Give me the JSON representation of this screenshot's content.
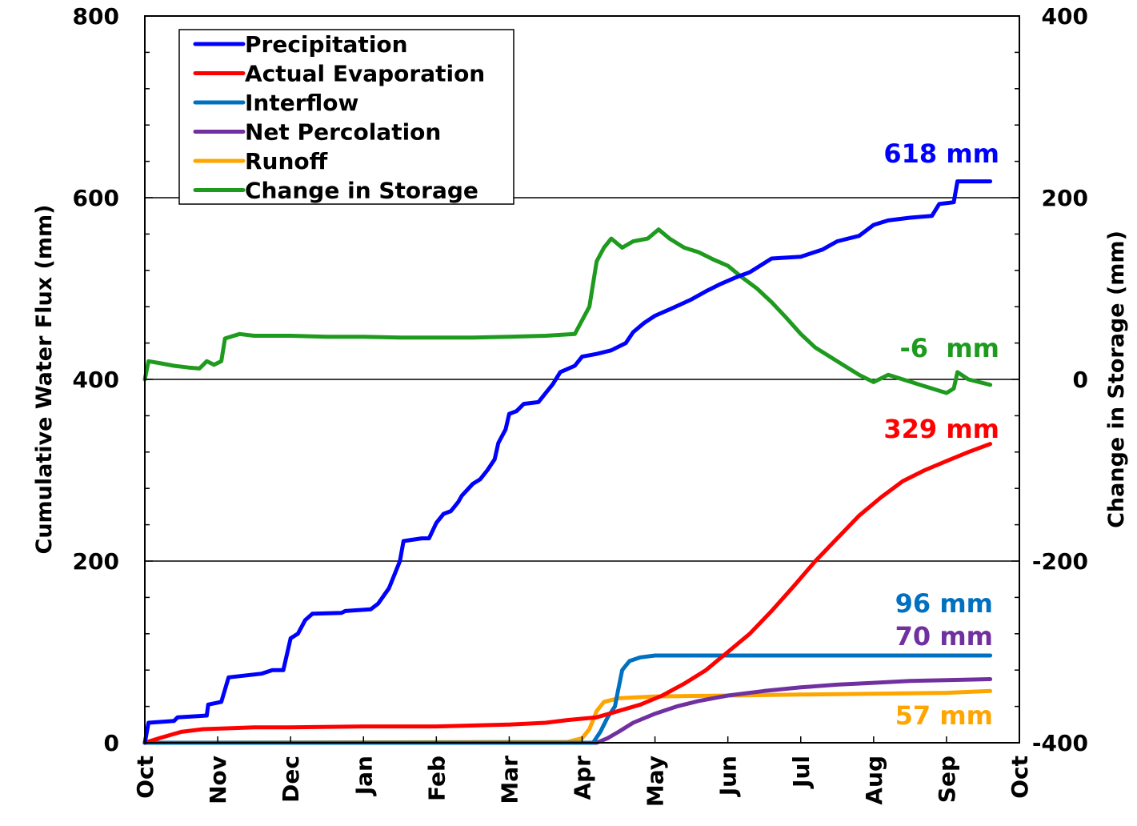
{
  "chart_data": {
    "type": "line",
    "xlabel": "",
    "ylabel": "Cumulative Water Flux (mm)",
    "y2label": "Change in Storage (mm)",
    "ylim": [
      0,
      800
    ],
    "y2lim": [
      -400,
      400
    ],
    "yticks": [
      "0",
      "200",
      "400",
      "600",
      "800"
    ],
    "y2ticks": [
      "-400",
      "-200",
      "0",
      "200",
      "400"
    ],
    "xtick_labels": [
      "Oct",
      "Nov",
      "Dec",
      "Jan",
      "Feb",
      "Mar",
      "Apr",
      "May",
      "Jun",
      "Jul",
      "Aug",
      "Sep",
      "Oct"
    ],
    "x_unit": "months since Oct 1",
    "gridlines_y": [
      200,
      400,
      600
    ],
    "legend_position": "top-left",
    "series": [
      {
        "name": "Precipitation",
        "axis": "left",
        "color": "#0000ff",
        "end_label": "618 mm",
        "points": [
          [
            0,
            0
          ],
          [
            0.05,
            22
          ],
          [
            0.4,
            24
          ],
          [
            0.45,
            28
          ],
          [
            0.85,
            30
          ],
          [
            0.87,
            42
          ],
          [
            1.05,
            45
          ],
          [
            1.15,
            72
          ],
          [
            1.6,
            76
          ],
          [
            1.75,
            80
          ],
          [
            1.9,
            80
          ],
          [
            2.0,
            115
          ],
          [
            2.1,
            120
          ],
          [
            2.2,
            135
          ],
          [
            2.3,
            142
          ],
          [
            2.7,
            143
          ],
          [
            2.75,
            145
          ],
          [
            3.1,
            147
          ],
          [
            3.2,
            153
          ],
          [
            3.35,
            170
          ],
          [
            3.45,
            190
          ],
          [
            3.5,
            200
          ],
          [
            3.55,
            222
          ],
          [
            3.8,
            225
          ],
          [
            3.9,
            225
          ],
          [
            4.0,
            242
          ],
          [
            4.1,
            252
          ],
          [
            4.2,
            255
          ],
          [
            4.3,
            265
          ],
          [
            4.35,
            272
          ],
          [
            4.5,
            285
          ],
          [
            4.6,
            290
          ],
          [
            4.7,
            300
          ],
          [
            4.8,
            312
          ],
          [
            4.85,
            330
          ],
          [
            4.95,
            345
          ],
          [
            5.0,
            362
          ],
          [
            5.1,
            365
          ],
          [
            5.2,
            373
          ],
          [
            5.4,
            375
          ],
          [
            5.5,
            385
          ],
          [
            5.6,
            395
          ],
          [
            5.7,
            408
          ],
          [
            5.9,
            415
          ],
          [
            6.0,
            425
          ],
          [
            6.2,
            428
          ],
          [
            6.4,
            432
          ],
          [
            6.6,
            440
          ],
          [
            6.7,
            452
          ],
          [
            6.85,
            462
          ],
          [
            7.0,
            470
          ],
          [
            7.2,
            477
          ],
          [
            7.5,
            488
          ],
          [
            7.7,
            497
          ],
          [
            7.9,
            505
          ],
          [
            8.1,
            512
          ],
          [
            8.3,
            518
          ],
          [
            8.6,
            533
          ],
          [
            9.0,
            535
          ],
          [
            9.3,
            543
          ],
          [
            9.5,
            552
          ],
          [
            9.8,
            558
          ],
          [
            10.0,
            570
          ],
          [
            10.2,
            575
          ],
          [
            10.5,
            578
          ],
          [
            10.8,
            580
          ],
          [
            10.9,
            593
          ],
          [
            11.1,
            595
          ],
          [
            11.15,
            618
          ],
          [
            11.6,
            618
          ]
        ]
      },
      {
        "name": "Actual Evaporation",
        "axis": "left",
        "color": "#ff0000",
        "end_label": "329 mm",
        "points": [
          [
            0,
            0
          ],
          [
            0.2,
            5
          ],
          [
            0.5,
            12
          ],
          [
            0.8,
            15
          ],
          [
            1.2,
            16
          ],
          [
            1.5,
            17
          ],
          [
            2.0,
            17
          ],
          [
            3.0,
            18
          ],
          [
            4.0,
            18
          ],
          [
            5.0,
            20
          ],
          [
            5.5,
            22
          ],
          [
            5.8,
            25
          ],
          [
            6.2,
            28
          ],
          [
            6.5,
            35
          ],
          [
            6.8,
            42
          ],
          [
            7.1,
            52
          ],
          [
            7.4,
            65
          ],
          [
            7.7,
            80
          ],
          [
            8.0,
            100
          ],
          [
            8.3,
            120
          ],
          [
            8.6,
            145
          ],
          [
            8.9,
            172
          ],
          [
            9.2,
            200
          ],
          [
            9.5,
            225
          ],
          [
            9.8,
            250
          ],
          [
            10.1,
            270
          ],
          [
            10.4,
            288
          ],
          [
            10.7,
            300
          ],
          [
            11.0,
            310
          ],
          [
            11.3,
            320
          ],
          [
            11.6,
            329
          ]
        ]
      },
      {
        "name": "Interflow",
        "axis": "left",
        "color": "#0070c0",
        "end_label": "96 mm",
        "points": [
          [
            0,
            0
          ],
          [
            6.15,
            0
          ],
          [
            6.25,
            12
          ],
          [
            6.35,
            28
          ],
          [
            6.45,
            40
          ],
          [
            6.5,
            60
          ],
          [
            6.55,
            80
          ],
          [
            6.65,
            90
          ],
          [
            6.8,
            94
          ],
          [
            7.0,
            96
          ],
          [
            11.6,
            96
          ]
        ]
      },
      {
        "name": "Net Percolation",
        "axis": "left",
        "color": "#7030a0",
        "end_label": "70 mm",
        "points": [
          [
            0,
            0
          ],
          [
            6.2,
            0
          ],
          [
            6.35,
            5
          ],
          [
            6.5,
            12
          ],
          [
            6.7,
            22
          ],
          [
            7.0,
            32
          ],
          [
            7.3,
            40
          ],
          [
            7.6,
            46
          ],
          [
            8.0,
            52
          ],
          [
            8.5,
            57
          ],
          [
            9.0,
            61
          ],
          [
            9.5,
            64
          ],
          [
            10.0,
            66
          ],
          [
            10.5,
            68
          ],
          [
            11.0,
            69
          ],
          [
            11.6,
            70
          ]
        ]
      },
      {
        "name": "Runoff",
        "axis": "left",
        "color": "#ffa500",
        "end_label": "57 mm",
        "points": [
          [
            0,
            0
          ],
          [
            5.8,
            1
          ],
          [
            6.0,
            5
          ],
          [
            6.1,
            15
          ],
          [
            6.2,
            35
          ],
          [
            6.3,
            45
          ],
          [
            6.5,
            49
          ],
          [
            7.0,
            51
          ],
          [
            8.0,
            52
          ],
          [
            9.0,
            53
          ],
          [
            10.0,
            54
          ],
          [
            11.0,
            55
          ],
          [
            11.6,
            57
          ]
        ]
      },
      {
        "name": "Change in Storage",
        "axis": "right",
        "color": "#1e9b1e",
        "end_label": "-6  mm",
        "points": [
          [
            0,
            0
          ],
          [
            0.05,
            20
          ],
          [
            0.2,
            18
          ],
          [
            0.4,
            15
          ],
          [
            0.6,
            13
          ],
          [
            0.75,
            12
          ],
          [
            0.85,
            20
          ],
          [
            0.95,
            16
          ],
          [
            1.05,
            20
          ],
          [
            1.1,
            45
          ],
          [
            1.3,
            50
          ],
          [
            1.5,
            48
          ],
          [
            2.0,
            48
          ],
          [
            2.5,
            47
          ],
          [
            3.0,
            47
          ],
          [
            3.5,
            46
          ],
          [
            4.0,
            46
          ],
          [
            4.5,
            46
          ],
          [
            5.0,
            47
          ],
          [
            5.5,
            48
          ],
          [
            5.9,
            50
          ],
          [
            6.0,
            65
          ],
          [
            6.1,
            80
          ],
          [
            6.2,
            130
          ],
          [
            6.3,
            145
          ],
          [
            6.4,
            155
          ],
          [
            6.55,
            145
          ],
          [
            6.7,
            152
          ],
          [
            6.9,
            155
          ],
          [
            7.05,
            165
          ],
          [
            7.2,
            155
          ],
          [
            7.4,
            145
          ],
          [
            7.6,
            140
          ],
          [
            7.8,
            132
          ],
          [
            8.0,
            125
          ],
          [
            8.2,
            112
          ],
          [
            8.4,
            100
          ],
          [
            8.6,
            85
          ],
          [
            8.8,
            68
          ],
          [
            9.0,
            50
          ],
          [
            9.2,
            35
          ],
          [
            9.4,
            25
          ],
          [
            9.6,
            15
          ],
          [
            9.8,
            5
          ],
          [
            10.0,
            -3
          ],
          [
            10.2,
            5
          ],
          [
            10.4,
            0
          ],
          [
            10.6,
            -5
          ],
          [
            10.8,
            -10
          ],
          [
            11.0,
            -15
          ],
          [
            11.1,
            -10
          ],
          [
            11.15,
            8
          ],
          [
            11.3,
            0
          ],
          [
            11.6,
            -6
          ]
        ]
      }
    ]
  }
}
